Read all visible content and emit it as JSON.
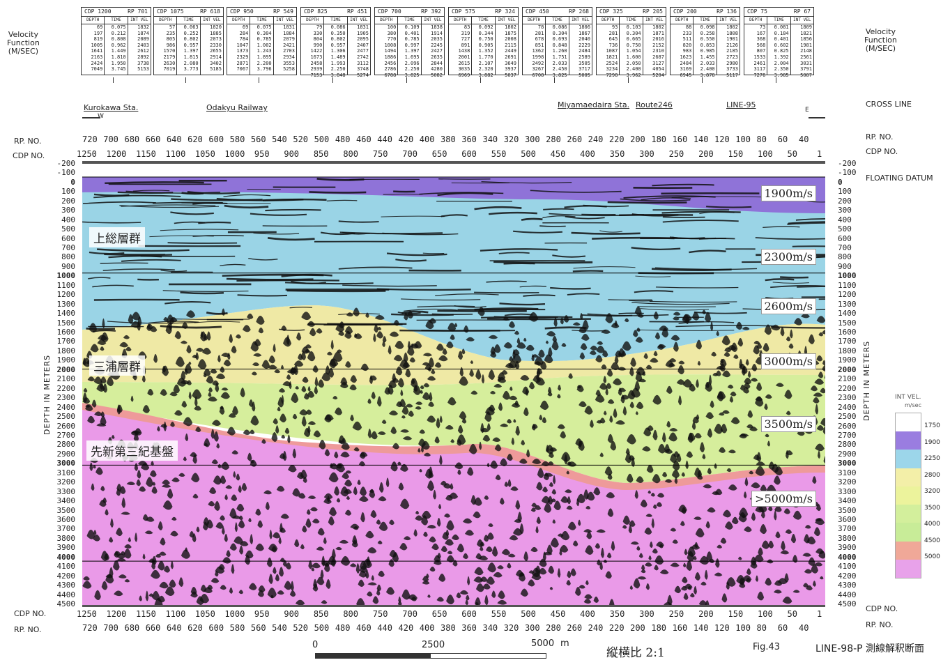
{
  "velocity_function": {
    "left_label": "Velocity\nFunction\n(M/SEC)",
    "right_label": "Velocity\nFunction\n(M/SEC)",
    "col_headers": [
      "DEPTH",
      "TIME",
      "INT VEL"
    ],
    "tables": [
      {
        "cdp": "CDP 1200",
        "rp": "RP 701",
        "depth": [
          "69",
          "197",
          "819",
          "1005",
          "1641",
          "2163",
          "2424",
          "7049"
        ],
        "time": [
          "0.075",
          "0.212",
          "0.808",
          "0.962",
          "1.449",
          "1.810",
          "1.950",
          "3.745"
        ],
        "vel": [
          "1832",
          "1874",
          "2089",
          "2403",
          "2612",
          "2892",
          "3738",
          "5153"
        ]
      },
      {
        "cdp": "CDP 1075",
        "rp": "RP 618",
        "depth": [
          "57",
          "235",
          "805",
          "986",
          "1570",
          "2179",
          "2630",
          "7019"
        ],
        "time": [
          "0.063",
          "0.252",
          "0.802",
          "0.957",
          "1.397",
          "1.815",
          "2.080",
          "3.773"
        ],
        "vel": [
          "1820",
          "1885",
          "2073",
          "2330",
          "2655",
          "2914",
          "3402",
          "5185"
        ]
      },
      {
        "cdp": "CDP 950",
        "rp": "RP 549",
        "depth": [
          "69",
          "284",
          "784",
          "1047",
          "1373",
          "2329",
          "2871",
          "7067"
        ],
        "time": [
          "0.075",
          "0.304",
          "0.785",
          "1.002",
          "1.243",
          "1.895",
          "2.200",
          "3.796"
        ],
        "vel": [
          "1831",
          "1884",
          "2079",
          "2421",
          "2703",
          "2934",
          "3553",
          "5258"
        ]
      },
      {
        "cdp": "CDP 825",
        "rp": "RP 451",
        "depth": [
          "79",
          "330",
          "804",
          "990",
          "1422",
          "1673",
          "2458",
          "2939",
          "7153"
        ],
        "time": [
          "0.086",
          "0.350",
          "0.802",
          "0.957",
          "1.306",
          "1.489",
          "1.993",
          "2.250",
          "3.848"
        ],
        "vel": [
          "1831",
          "1905",
          "2095",
          "2407",
          "2477",
          "2742",
          "3112",
          "3748",
          "5274"
        ]
      },
      {
        "cdp": "CDP 700",
        "rp": "RP 392",
        "depth": [
          "100",
          "380",
          "770",
          "1008",
          "1494",
          "1886",
          "2456",
          "2786",
          "6788"
        ],
        "time": [
          "0.109",
          "0.401",
          "0.785",
          "0.997",
          "1.397",
          "1.695",
          "2.096",
          "2.250",
          "3.825"
        ],
        "vel": [
          "1838",
          "1914",
          "2035",
          "2245",
          "2427",
          "2635",
          "2844",
          "4280",
          "5082"
        ]
      },
      {
        "cdp": "CDP 575",
        "rp": "RP 324",
        "depth": [
          "83",
          "319",
          "727",
          "891",
          "1438",
          "2001",
          "2615",
          "3035",
          "6969"
        ],
        "time": [
          "0.092",
          "0.344",
          "0.750",
          "0.905",
          "1.352",
          "1.770",
          "2.107",
          "2.320",
          "3.882"
        ],
        "vel": [
          "1802",
          "1875",
          "2008",
          "2115",
          "2449",
          "2691",
          "3649",
          "3937",
          "5037"
        ]
      },
      {
        "cdp": "CDP 450",
        "rp": "RP 268",
        "depth": [
          "78",
          "281",
          "678",
          "851",
          "1362",
          "1998",
          "2492",
          "3267",
          "6708"
        ],
        "time": [
          "0.086",
          "0.304",
          "0.693",
          "0.848",
          "1.260",
          "1.751",
          "2.033",
          "2.450",
          "3.825"
        ],
        "vel": [
          "1806",
          "1867",
          "2040",
          "2229",
          "2484",
          "2589",
          "3505",
          "3717",
          "5005"
        ]
      },
      {
        "cdp": "CDP 325",
        "rp": "RP 205",
        "depth": [
          "93",
          "281",
          "645",
          "736",
          "1087",
          "1821",
          "2524",
          "3234",
          "7298"
        ],
        "time": [
          "0.103",
          "0.304",
          "0.665",
          "0.750",
          "1.054",
          "1.600",
          "2.050",
          "2.400",
          "3.962"
        ],
        "vel": [
          "1802",
          "1871",
          "2016",
          "2152",
          "2310",
          "2687",
          "3127",
          "4054",
          "5204"
        ]
      },
      {
        "cdp": "CDP 200",
        "rp": "RP 136",
        "depth": [
          "88",
          "233",
          "511",
          "820",
          "983",
          "1623",
          "2484",
          "3169",
          "6945"
        ],
        "time": [
          "0.098",
          "0.258",
          "0.550",
          "0.853",
          "0.985",
          "1.455",
          "2.033",
          "2.400",
          "3.878"
        ],
        "vel": [
          "1802",
          "1808",
          "1901",
          "2126",
          "2185",
          "2723",
          "2980",
          "3733",
          "5117"
        ]
      },
      {
        "cdp": "CDP 75",
        "rp": "RP 67",
        "depth": [
          "73",
          "167",
          "368",
          "568",
          "807",
          "1533",
          "2461",
          "3117",
          "7276"
        ],
        "time": [
          "0.081",
          "0.184",
          "0.401",
          "0.602",
          "0.825",
          "1.392",
          "2.004",
          "2.350",
          "3.985"
        ],
        "vel": [
          "1809",
          "1821",
          "1856",
          "1981",
          "2148",
          "2561",
          "3031",
          "3791",
          "5087"
        ]
      }
    ]
  },
  "landmarks": {
    "kurokawa": "Kurokawa Sta.",
    "odakyu": "Odakyu Railway",
    "miyamaedaira": "Miyamaedaira Sta.",
    "route": "Route246",
    "line95": "LINE-95",
    "cross_line": "CROSS LINE",
    "west": "W",
    "east": "E"
  },
  "axis_labels": {
    "rp_no": "RP. NO.",
    "cdp_no": "CDP NO.",
    "depth_in_meters": "DEPTH IN METERS",
    "floating_datum": "FLOATING DATUM"
  },
  "rp_ticks": [
    "720",
    "700",
    "680",
    "660",
    "640",
    "620",
    "600",
    "580",
    "560",
    "540",
    "520",
    "500",
    "480",
    "460",
    "440",
    "420",
    "400",
    "380",
    "360",
    "340",
    "320",
    "300",
    "280",
    "260",
    "240",
    "220",
    "200",
    "180",
    "160",
    "140",
    "120",
    "100",
    "80",
    "60",
    "40"
  ],
  "cdp_ticks": [
    "1250",
    "1200",
    "1150",
    "1100",
    "1050",
    "1000",
    "950",
    "900",
    "850",
    "800",
    "750",
    "700",
    "650",
    "600",
    "550",
    "500",
    "450",
    "400",
    "350",
    "300",
    "250",
    "200",
    "150",
    "100",
    "50",
    "1"
  ],
  "depth_ticks": [
    "-200",
    "-100",
    "0",
    "100",
    "200",
    "300",
    "400",
    "500",
    "600",
    "700",
    "800",
    "900",
    "1000",
    "1100",
    "1200",
    "1300",
    "1400",
    "1500",
    "1600",
    "1700",
    "1800",
    "1900",
    "2000",
    "2100",
    "2200",
    "2300",
    "2400",
    "2500",
    "2600",
    "2700",
    "2800",
    "2900",
    "3000",
    "3100",
    "3200",
    "3300",
    "3400",
    "3500",
    "3600",
    "3700",
    "3800",
    "3900",
    "4000",
    "4100",
    "4200",
    "4300",
    "4400",
    "4500"
  ],
  "velocity_labels": [
    "1900m/s",
    "2300m/s",
    "2600m/s",
    "3000m/s",
    "3500m/s",
    ">5000m/s"
  ],
  "formations": {
    "kazusa": "上総層群",
    "miura": "三浦層群",
    "basement": "先新第三紀基盤"
  },
  "legend": {
    "title": "INT VEL.",
    "unit": "m/sec",
    "values": [
      "1750",
      "1900",
      "2250",
      "2800",
      "3200",
      "3500",
      "4000",
      "4500",
      "5000"
    ],
    "colors": [
      "#ffffff",
      "#9a7de0",
      "#9cd6ea",
      "#f3efa8",
      "#ecf39c",
      "#d3ef9c",
      "#c8ec98",
      "#f0a898",
      "#e8a2ea"
    ]
  },
  "scale_bar": {
    "ticks": [
      "0",
      "2500",
      "5000"
    ],
    "unit": "m"
  },
  "footer": {
    "ratio": "縦横比 2:1",
    "fig": "Fig.43",
    "title": "LINE-98-P 測線解釈断面"
  },
  "colors": {
    "purple": "#8f73d8",
    "cyan": "#9ad4e6",
    "yellow": "#efe9a5",
    "green": "#d6ee9c",
    "salmon": "#ee9a9a",
    "magenta": "#ea9ae8"
  }
}
